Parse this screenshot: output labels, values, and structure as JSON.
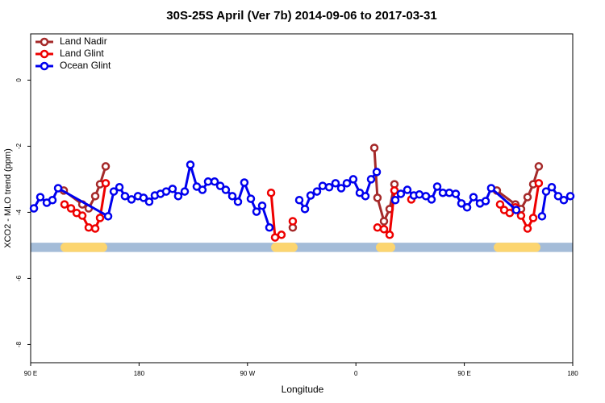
{
  "chart_data": {
    "type": "line",
    "title": "30S-25S April (Ver 7b)   2014-09-06 to 2017-03-31",
    "x_label": "Longitude",
    "y_label": "XCO2 - MLO trend (ppm)",
    "xlim": [
      90,
      540
    ],
    "ylim": [
      -8.55,
      1.4
    ],
    "xticks": [
      {
        "value": 90,
        "label": "90 E"
      },
      {
        "value": 180,
        "label": "180"
      },
      {
        "value": 270,
        "label": "90 W"
      },
      {
        "value": 360,
        "label": "0"
      },
      {
        "value": 450,
        "label": "90 E"
      },
      {
        "value": 540,
        "label": "180"
      }
    ],
    "yticks": [
      0,
      -2,
      -4,
      -6,
      -8
    ],
    "legend": "top-left",
    "land_band": {
      "ylim": [
        -4.92,
        -5.2
      ],
      "ocean_color": "#a4bcd8",
      "land_color": "#fcd56f",
      "land": [
        [
          114.8,
          153.6
        ],
        [
          289.6,
          311.6
        ],
        [
          376.6,
          392.7
        ],
        [
          474.4,
          513.2
        ]
      ]
    },
    "series": [
      {
        "name": "Land Nadir",
        "color": "#a52a2a",
        "x": [
          117.5,
          132.9,
          138.2,
          143.6,
          147.6,
          152.3,
          null,
          307.6,
          null,
          375.3,
          377.9,
          383.3,
          388.0,
          392.0,
          null,
          477.0,
          492.4,
          497.1,
          502.5,
          507.2,
          511.8
        ],
        "values": [
          -3.34,
          -3.76,
          -3.88,
          -3.51,
          -3.15,
          -2.61,
          null,
          -4.46,
          null,
          -2.05,
          -3.56,
          -4.27,
          -3.9,
          -3.15,
          null,
          -3.34,
          -3.76,
          -3.9,
          -3.54,
          -3.15,
          -2.61
        ]
      },
      {
        "name": "Land Glint",
        "color": "#ee0000",
        "x": [
          118.1,
          123.5,
          128.2,
          132.9,
          138.2,
          143.6,
          147.6,
          152.3,
          null,
          289.6,
          292.9,
          298.2,
          null,
          307.6,
          null,
          377.9,
          383.3,
          388.0,
          392.0,
          null,
          406.0,
          null,
          479.7,
          483.1,
          487.7,
          492.4,
          497.1,
          502.5,
          507.2,
          511.8
        ],
        "values": [
          -3.76,
          -3.88,
          -4.02,
          -4.1,
          -4.46,
          -4.49,
          -4.17,
          -3.12,
          null,
          -3.41,
          -4.76,
          -4.68,
          null,
          -4.27,
          null,
          -4.46,
          -4.51,
          -4.68,
          -3.34,
          null,
          -3.61,
          null,
          -3.76,
          -3.93,
          -4.02,
          -3.85,
          -4.1,
          -4.49,
          -4.17,
          -3.12
        ]
      },
      {
        "name": "Ocean Glint",
        "color": "#0000ee",
        "x": [
          92.7,
          98.0,
          103.4,
          108.1,
          112.8,
          154.3,
          159.0,
          163.7,
          168.3,
          173.7,
          179.1,
          183.7,
          188.4,
          193.1,
          197.8,
          202.5,
          207.8,
          212.5,
          217.9,
          222.6,
          227.9,
          232.6,
          237.3,
          242.7,
          247.4,
          252.0,
          257.4,
          262.1,
          267.4,
          272.8,
          277.5,
          282.2,
          288.2,
          null,
          313.0,
          317.7,
          322.4,
          327.7,
          332.4,
          337.8,
          343.1,
          347.8,
          352.5,
          357.8,
          363.2,
          367.9,
          372.6,
          377.3,
          null,
          392.7,
          397.3,
          402.7,
          408.1,
          412.7,
          418.1,
          422.8,
          427.5,
          432.2,
          437.5,
          442.9,
          447.6,
          452.3,
          457.6,
          463.0,
          467.7,
          472.3,
          493.1,
          null,
          514.5,
          517.9,
          522.6,
          527.9,
          532.6,
          538.0
        ],
        "values": [
          -3.88,
          -3.54,
          -3.71,
          -3.63,
          -3.27,
          -4.12,
          -3.37,
          -3.24,
          -3.51,
          -3.61,
          -3.51,
          -3.56,
          -3.68,
          -3.49,
          -3.44,
          -3.37,
          -3.29,
          -3.51,
          -3.37,
          -2.56,
          -3.22,
          -3.32,
          -3.07,
          -3.07,
          -3.2,
          -3.32,
          -3.51,
          -3.68,
          -3.1,
          -3.59,
          -3.98,
          -3.8,
          -4.46,
          null,
          -3.63,
          -3.9,
          -3.49,
          -3.37,
          -3.2,
          -3.24,
          -3.12,
          -3.27,
          -3.12,
          -3.0,
          -3.41,
          -3.51,
          -3.0,
          -2.78,
          null,
          -3.63,
          -3.44,
          -3.32,
          -3.49,
          -3.46,
          -3.51,
          -3.61,
          -3.22,
          -3.41,
          -3.41,
          -3.44,
          -3.73,
          -3.85,
          -3.54,
          -3.73,
          -3.66,
          -3.27,
          -3.93,
          null,
          -4.12,
          -3.37,
          -3.24,
          -3.51,
          -3.63,
          -3.51
        ]
      }
    ]
  }
}
